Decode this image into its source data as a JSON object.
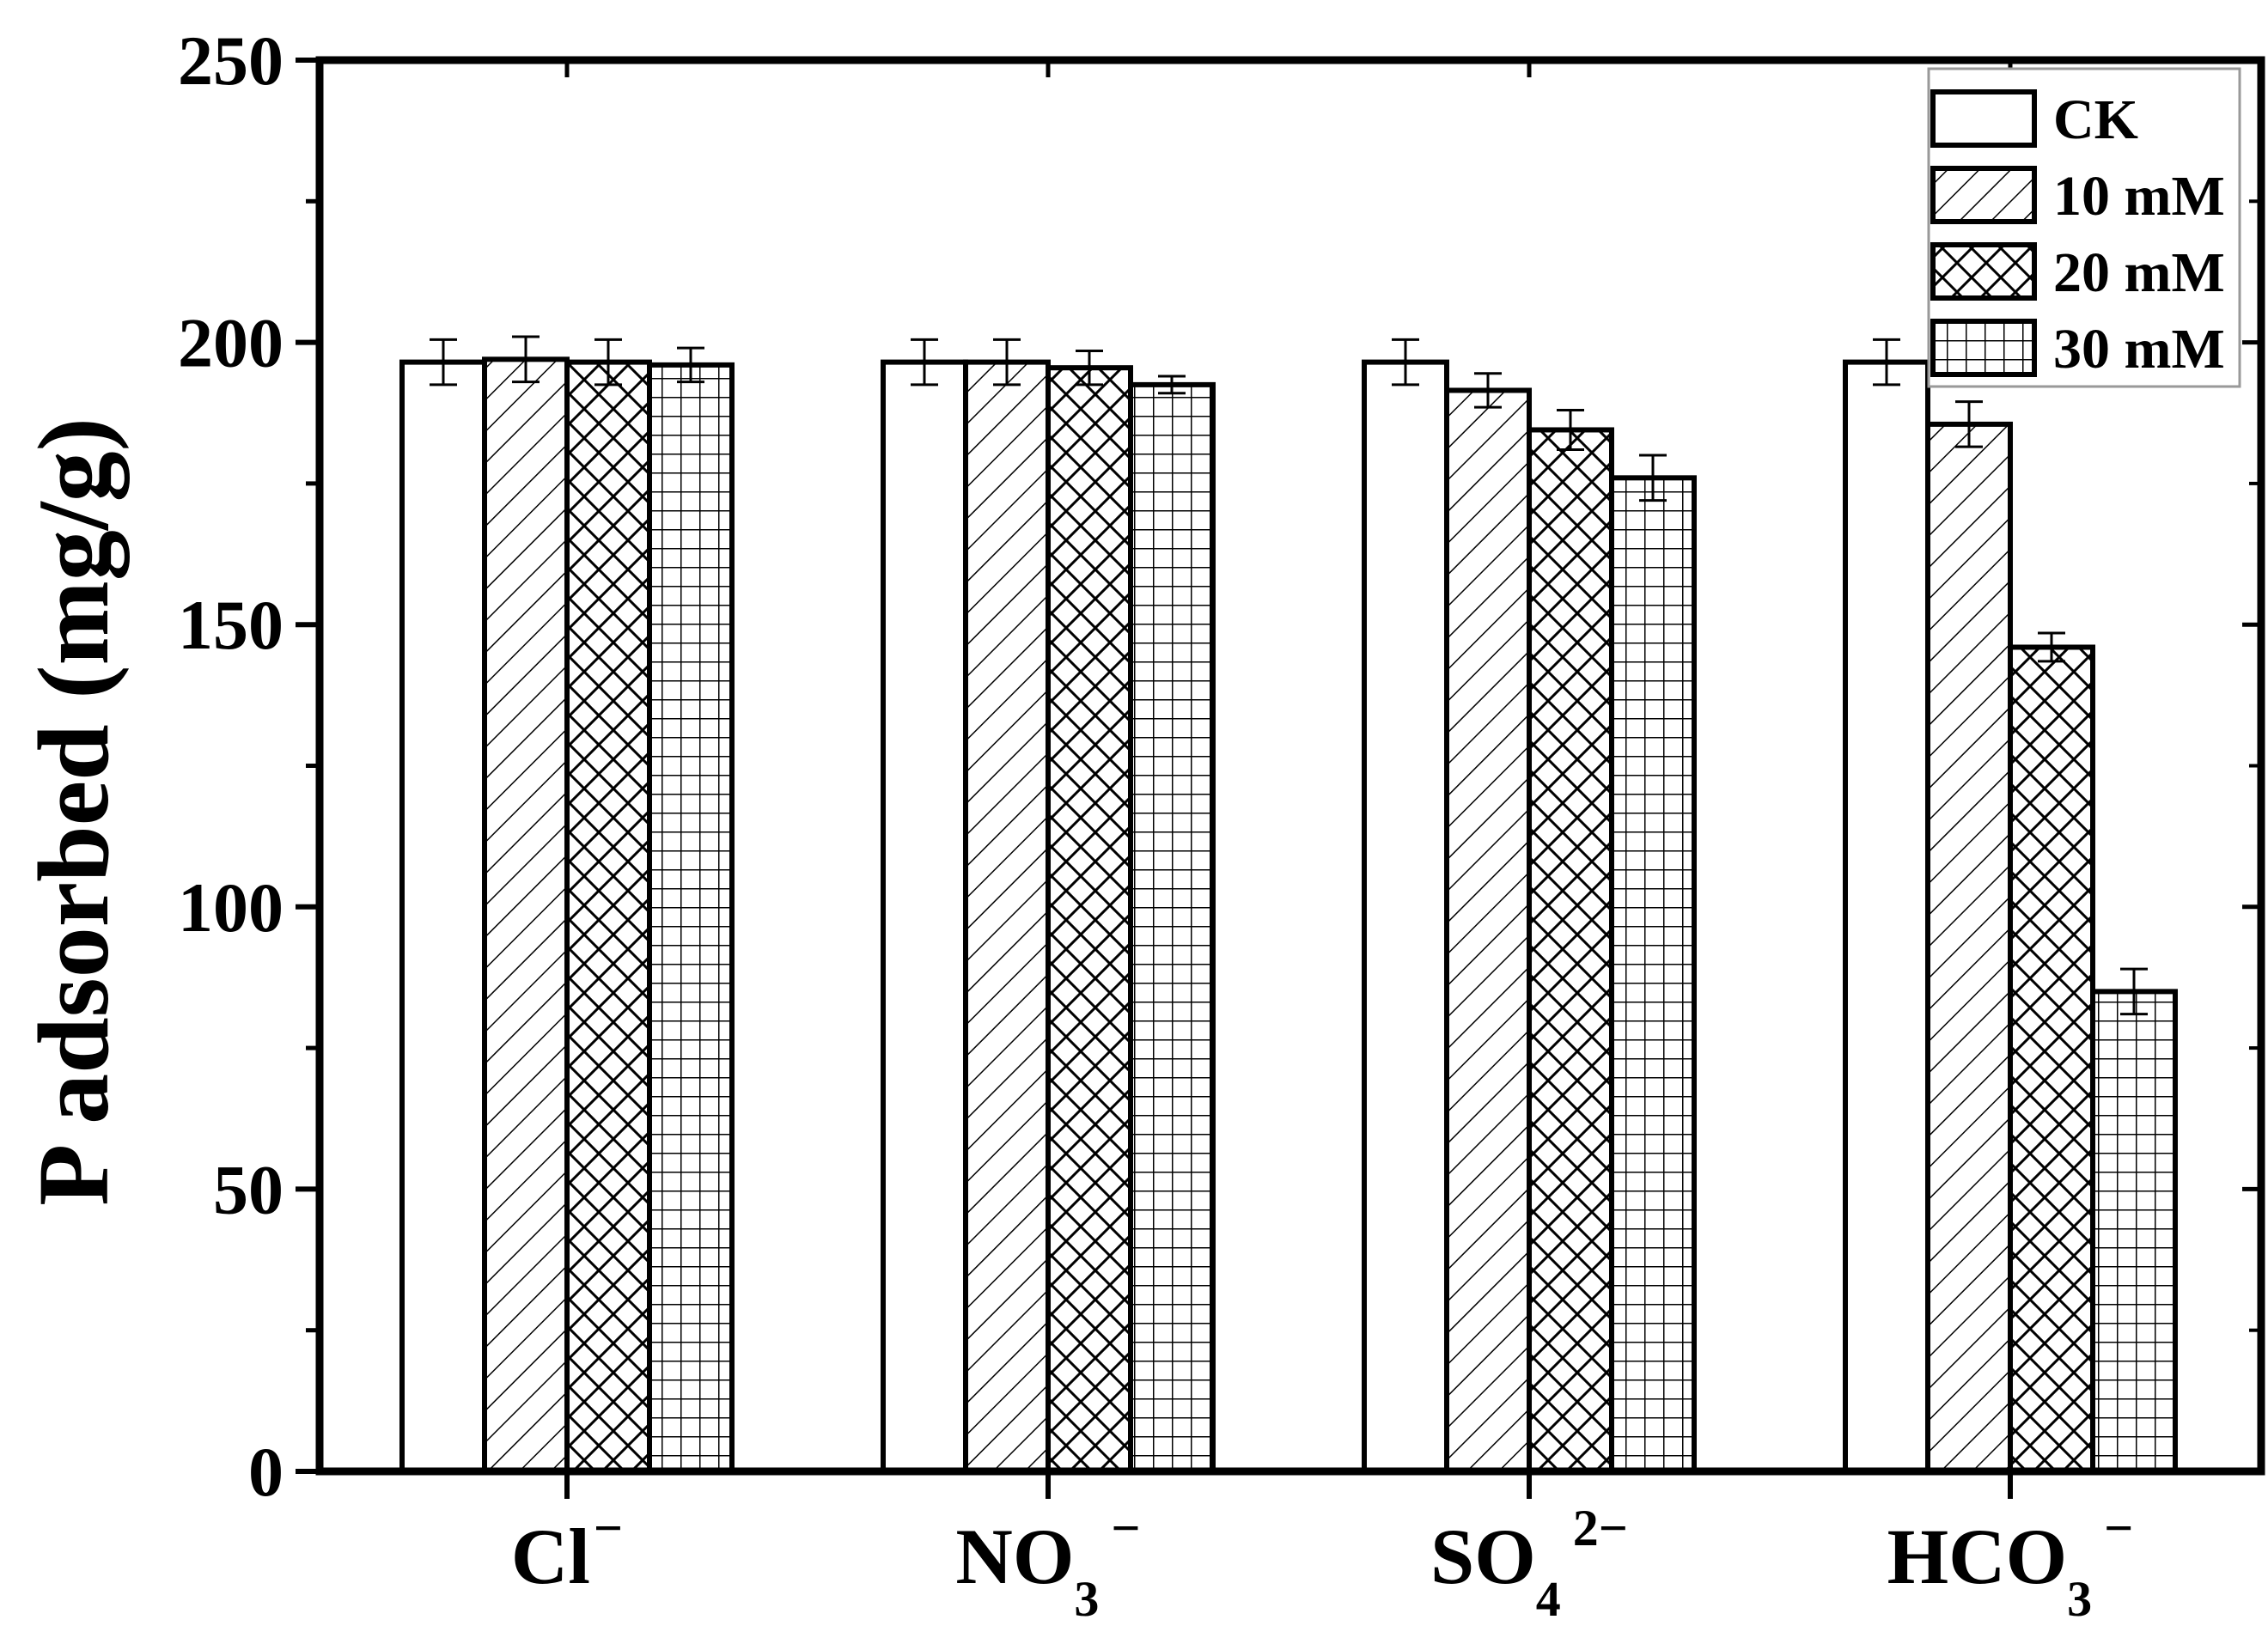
{
  "chart_data": {
    "type": "bar",
    "ylabel": "P adsorbed (mg/g)",
    "xlabel": "",
    "ylim": [
      0,
      250
    ],
    "yticks": [
      0,
      50,
      100,
      150,
      200,
      250
    ],
    "categories": [
      {
        "base": "Cl",
        "sub": "",
        "sup": "−"
      },
      {
        "base": "NO",
        "sub": "3",
        "sup": "−"
      },
      {
        "base": "SO",
        "sub": "4",
        "sup": "2−"
      },
      {
        "base": "HCO",
        "sub": "3",
        "sup": "−"
      }
    ],
    "series": [
      {
        "name": "CK",
        "pattern": "none",
        "values": [
          196.5,
          196.5,
          196.5,
          196.5
        ],
        "errors": [
          4,
          4,
          4,
          4
        ]
      },
      {
        "name": "10 mM",
        "pattern": "diagonal",
        "values": [
          197,
          196.5,
          191.5,
          185.5
        ],
        "errors": [
          4,
          4,
          3,
          4
        ]
      },
      {
        "name": "20 mM",
        "pattern": "crosshatch",
        "values": [
          196.5,
          195.5,
          184.5,
          146
        ],
        "errors": [
          4,
          3,
          3.5,
          2.5
        ]
      },
      {
        "name": "30 mM",
        "pattern": "grid",
        "values": [
          196,
          192.5,
          176,
          85
        ],
        "errors": [
          3,
          1.5,
          4,
          4
        ]
      }
    ],
    "legend_position": "top-right",
    "grid": false
  }
}
